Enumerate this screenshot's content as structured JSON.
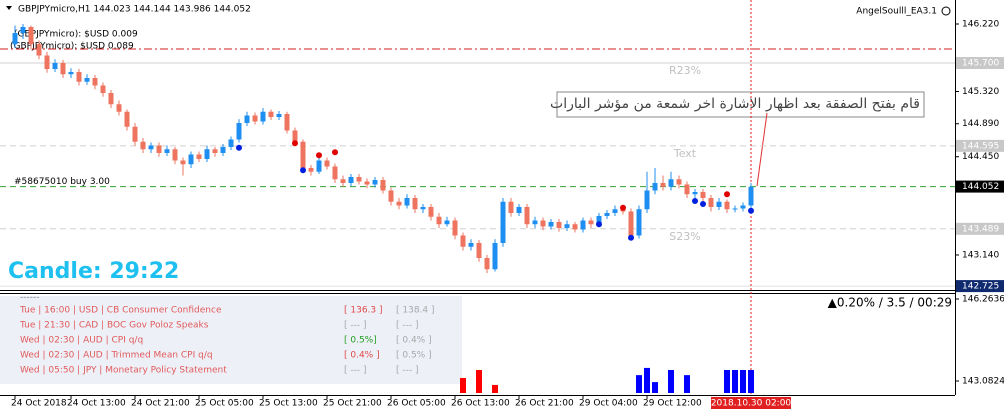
{
  "header": {
    "symbol_info": "GBPJPYmicro,H1  144.023 144.144 143.986 144.052",
    "expert": "AngelSoulll_EA3.1",
    "profit_lines": [
      "(GBPJPYmicro): $USD 0.009",
      "(GBPJPYmicro): $USD 0.089"
    ]
  },
  "candle_timer": "Candle:  29:22",
  "annotation": "قام بفتح الصفقة بعد اظهار الاشارة اخر شمعة من مؤشر البارات",
  "status": "▲0.20% / 3.5 / 00:29",
  "news": {
    "header": "------",
    "rows": [
      {
        "text": "Tue  |  16:00  |  USD  |  CB Consumer Confidence",
        "actual": "[ 136.3 ]",
        "forecast": "[ 138.4 ]",
        "actual_color": "#e04848"
      },
      {
        "text": "Tue  |  21:30  |  CAD  |  BOC Gov Poloz Speaks",
        "actual": "[ --- ]",
        "forecast": "[ --- ]",
        "actual_color": "#a8a8a8"
      },
      {
        "text": "Wed  |  02:30  |  AUD  |  CPI q/q",
        "actual": "[ 0.5%]",
        "forecast": "[ 0.4% ]",
        "actual_color": "#20a020"
      },
      {
        "text": "Wed  |  02:30  |  AUD  |  Trimmed Mean CPI q/q",
        "actual": "[ 0.4% ]",
        "forecast": "[ 0.5% ]",
        "actual_color": "#e04848"
      },
      {
        "text": "Wed  |  05:50  |  JPY  |  Monetary Policy Statement",
        "actual": "[ --- ]",
        "forecast": "[ --- ]",
        "actual_color": "#a8a8a8"
      }
    ]
  },
  "chart_data": [
    {
      "type": "candlestick",
      "colors": {
        "up": "#1e8ff0",
        "down": "#ef7460"
      },
      "xlim": [
        -1.875,
        117.5
      ],
      "ylim": [
        142.673,
        146.54
      ],
      "yticks": [
        {
          "value": 146.22,
          "label": "146.220"
        },
        {
          "value": 145.32,
          "label": "145.320"
        },
        {
          "value": 144.89,
          "label": "144.890"
        },
        {
          "value": 144.45,
          "label": "144.450"
        },
        {
          "value": 143.14,
          "label": "143.140"
        }
      ],
      "x_labels": [
        {
          "index": 0,
          "label": "24 Oct 2018"
        },
        {
          "index": 7,
          "label": "24 Oct 13:00"
        },
        {
          "index": 15,
          "label": "24 Oct 21:00"
        },
        {
          "index": 23,
          "label": "25 Oct 05:00"
        },
        {
          "index": 31,
          "label": "25 Oct 13:00"
        },
        {
          "index": 39,
          "label": "25 Oct 21:00"
        },
        {
          "index": 47,
          "label": "26 Oct 05:00"
        },
        {
          "index": 55,
          "label": "26 Oct 13:00"
        },
        {
          "index": 63,
          "label": "26 Oct 21:00"
        },
        {
          "index": 71,
          "label": "29 Oct 04:00"
        },
        {
          "index": 79,
          "label": "29 Oct 12:00"
        }
      ],
      "cursor": {
        "index": 92,
        "label": "2018.10.30 02:00"
      },
      "levels": [
        {
          "value": 145.887,
          "color": "#d02020",
          "dash": "8 3 2 3"
        },
        {
          "value": 145.7,
          "label": "145.700",
          "name": "R23%",
          "color": "#d0d0d0",
          "dash": "none",
          "box": "#c8c8c8"
        },
        {
          "value": 144.595,
          "label": "144.595",
          "name": "Text",
          "color": "#d0d0d0",
          "dash": "6 4",
          "box": "#c8c8c8"
        },
        {
          "value": 144.052,
          "label": "144.052",
          "name": "#58675010 buy 3.00",
          "color": "#30a030",
          "dash": "6 4",
          "box": "#000000"
        },
        {
          "value": 143.489,
          "label": "143.489",
          "name": "S23%",
          "color": "#d0d0d0",
          "dash": "6 4",
          "box": "#c8c8c8"
        },
        {
          "value": 142.725,
          "label": "142.725",
          "color": "#e0e0e0",
          "dash": "none",
          "box": "#102a70"
        }
      ],
      "signals": [
        {
          "index": 35,
          "price": 144.63,
          "color": "#e00000"
        },
        {
          "index": 38,
          "price": 144.47,
          "color": "#e00000"
        },
        {
          "index": 40,
          "price": 144.51,
          "color": "#e00000"
        },
        {
          "index": 76,
          "price": 143.77,
          "color": "#e00000"
        },
        {
          "index": 89,
          "price": 143.95,
          "color": "#e00000"
        },
        {
          "index": 28,
          "price": 144.57,
          "color": "#0020e0"
        },
        {
          "index": 36,
          "price": 144.27,
          "color": "#0020e0"
        },
        {
          "index": 73,
          "price": 143.55,
          "color": "#0020e0"
        },
        {
          "index": 77,
          "price": 143.37,
          "color": "#0020e0"
        },
        {
          "index": 85,
          "price": 143.86,
          "color": "#0020e0"
        },
        {
          "index": 86,
          "price": 143.82,
          "color": "#0020e0"
        },
        {
          "index": 92,
          "price": 143.73,
          "color": "#0020e0"
        }
      ],
      "ohlc": [
        [
          145.95,
          146.2,
          145.9,
          146.1
        ],
        [
          146.1,
          146.22,
          146.02,
          146.18
        ],
        [
          146.18,
          146.2,
          145.88,
          145.95
        ],
        [
          145.95,
          146.0,
          145.75,
          145.8
        ],
        [
          145.8,
          145.85,
          145.57,
          145.62
        ],
        [
          145.62,
          145.75,
          145.58,
          145.7
        ],
        [
          145.7,
          145.74,
          145.5,
          145.55
        ],
        [
          145.55,
          145.63,
          145.5,
          145.58
        ],
        [
          145.58,
          145.62,
          145.4,
          145.45
        ],
        [
          145.45,
          145.55,
          145.41,
          145.5
        ],
        [
          145.5,
          145.54,
          145.35,
          145.4
        ],
        [
          145.4,
          145.44,
          145.25,
          145.3
        ],
        [
          145.3,
          145.34,
          145.1,
          145.15
        ],
        [
          145.15,
          145.2,
          145.0,
          145.05
        ],
        [
          145.05,
          145.08,
          144.8,
          144.85
        ],
        [
          144.85,
          144.9,
          144.6,
          144.65
        ],
        [
          144.65,
          144.7,
          144.5,
          144.55
        ],
        [
          144.55,
          144.64,
          144.5,
          144.6
        ],
        [
          144.6,
          144.64,
          144.45,
          144.5
        ],
        [
          144.5,
          144.6,
          144.46,
          144.55
        ],
        [
          144.55,
          144.58,
          144.35,
          144.4
        ],
        [
          144.4,
          144.44,
          144.2,
          144.35
        ],
        [
          144.35,
          144.52,
          144.3,
          144.48
        ],
        [
          144.48,
          144.52,
          144.38,
          144.42
        ],
        [
          144.42,
          144.6,
          144.38,
          144.55
        ],
        [
          144.55,
          144.58,
          144.45,
          144.5
        ],
        [
          144.5,
          144.62,
          144.46,
          144.58
        ],
        [
          144.58,
          144.72,
          144.54,
          144.68
        ],
        [
          144.68,
          144.95,
          144.64,
          144.9
        ],
        [
          144.9,
          145.05,
          144.86,
          145.0
        ],
        [
          145.0,
          145.04,
          144.88,
          144.92
        ],
        [
          144.92,
          145.1,
          144.88,
          145.05
        ],
        [
          145.05,
          145.08,
          144.94,
          144.98
        ],
        [
          144.98,
          145.06,
          144.94,
          145.02
        ],
        [
          145.02,
          145.05,
          144.76,
          144.8
        ],
        [
          144.8,
          144.84,
          144.6,
          144.65
        ],
        [
          144.65,
          144.68,
          144.25,
          144.3
        ],
        [
          144.3,
          144.34,
          144.2,
          144.25
        ],
        [
          144.25,
          144.45,
          144.22,
          144.4
        ],
        [
          144.4,
          144.44,
          144.28,
          144.32
        ],
        [
          144.32,
          144.36,
          144.1,
          144.15
        ],
        [
          144.15,
          144.2,
          144.05,
          144.1
        ],
        [
          144.1,
          144.22,
          144.06,
          144.18
        ],
        [
          144.18,
          144.22,
          144.08,
          144.12
        ],
        [
          144.12,
          144.16,
          144.03,
          144.08
        ],
        [
          144.08,
          144.18,
          144.04,
          144.14
        ],
        [
          144.14,
          144.18,
          143.96,
          144.0
        ],
        [
          144.0,
          144.04,
          143.8,
          143.85
        ],
        [
          143.85,
          143.9,
          143.75,
          143.8
        ],
        [
          143.8,
          143.95,
          143.76,
          143.9
        ],
        [
          143.9,
          143.94,
          143.7,
          143.75
        ],
        [
          143.75,
          143.82,
          143.7,
          143.78
        ],
        [
          143.78,
          143.82,
          143.6,
          143.65
        ],
        [
          143.65,
          143.7,
          143.5,
          143.55
        ],
        [
          143.55,
          143.65,
          143.52,
          143.6
        ],
        [
          143.6,
          143.64,
          143.35,
          143.4
        ],
        [
          143.4,
          143.44,
          143.2,
          143.25
        ],
        [
          143.25,
          143.35,
          143.2,
          143.3
        ],
        [
          143.3,
          143.34,
          143.05,
          143.1
        ],
        [
          143.1,
          143.14,
          142.9,
          142.95
        ],
        [
          142.95,
          143.35,
          142.92,
          143.3
        ],
        [
          143.3,
          143.9,
          143.25,
          143.85
        ],
        [
          143.85,
          143.9,
          143.65,
          143.7
        ],
        [
          143.7,
          143.82,
          143.66,
          143.78
        ],
        [
          143.78,
          143.82,
          143.5,
          143.55
        ],
        [
          143.55,
          143.65,
          143.5,
          143.6
        ],
        [
          143.6,
          143.64,
          143.47,
          143.52
        ],
        [
          143.52,
          143.62,
          143.48,
          143.58
        ],
        [
          143.58,
          143.62,
          143.45,
          143.5
        ],
        [
          143.5,
          143.6,
          143.46,
          143.55
        ],
        [
          143.55,
          143.58,
          143.44,
          143.48
        ],
        [
          143.48,
          143.64,
          143.44,
          143.6
        ],
        [
          143.6,
          143.64,
          143.5,
          143.55
        ],
        [
          143.55,
          143.7,
          143.51,
          143.66
        ],
        [
          143.66,
          143.74,
          143.62,
          143.7
        ],
        [
          143.7,
          143.8,
          143.66,
          143.75
        ],
        [
          143.75,
          143.78,
          143.68,
          143.72
        ],
        [
          143.72,
          143.76,
          143.35,
          143.4
        ],
        [
          143.4,
          143.8,
          143.36,
          143.75
        ],
        [
          143.75,
          144.25,
          143.7,
          144.0
        ],
        [
          144.0,
          144.3,
          143.95,
          144.1
        ],
        [
          144.1,
          144.2,
          144.0,
          144.05
        ],
        [
          144.05,
          144.25,
          144.0,
          144.15
        ],
        [
          144.15,
          144.2,
          144.03,
          144.08
        ],
        [
          144.08,
          144.12,
          143.9,
          143.95
        ],
        [
          143.95,
          144.02,
          143.9,
          143.98
        ],
        [
          143.98,
          144.02,
          143.85,
          143.9
        ],
        [
          143.9,
          143.94,
          143.72,
          143.78
        ],
        [
          143.78,
          143.9,
          143.74,
          143.85
        ],
        [
          143.85,
          143.88,
          143.7,
          143.75
        ],
        [
          143.75,
          143.8,
          143.71,
          143.76
        ],
        [
          143.76,
          143.84,
          143.72,
          143.8
        ],
        [
          143.8,
          144.1,
          143.76,
          144.05
        ]
      ]
    },
    {
      "type": "bar",
      "xlim": [
        -1.875,
        117.5
      ],
      "ylim": [
        142.617,
        146.535
      ],
      "yticks": [
        146.2636,
        143.0824
      ],
      "bars": [
        {
          "index": 56,
          "value": 143.2,
          "color": "#ff0000"
        },
        {
          "index": 58,
          "value": 143.51,
          "color": "#ff0000"
        },
        {
          "index": 60,
          "value": 142.93,
          "color": "#ff0000"
        },
        {
          "index": 78,
          "value": 143.31,
          "color": "#0000ff"
        },
        {
          "index": 79,
          "value": 143.59,
          "color": "#0000ff"
        },
        {
          "index": 80,
          "value": 143.04,
          "color": "#0000ff"
        },
        {
          "index": 82,
          "value": 143.51,
          "color": "#0000ff"
        },
        {
          "index": 84,
          "value": 143.31,
          "color": "#0000ff"
        },
        {
          "index": 89,
          "value": 143.51,
          "color": "#0000ff"
        },
        {
          "index": 90,
          "value": 143.51,
          "color": "#0000ff"
        },
        {
          "index": 91,
          "value": 143.51,
          "color": "#0000ff"
        },
        {
          "index": 92,
          "value": 143.51,
          "color": "#0000ff"
        }
      ]
    }
  ]
}
